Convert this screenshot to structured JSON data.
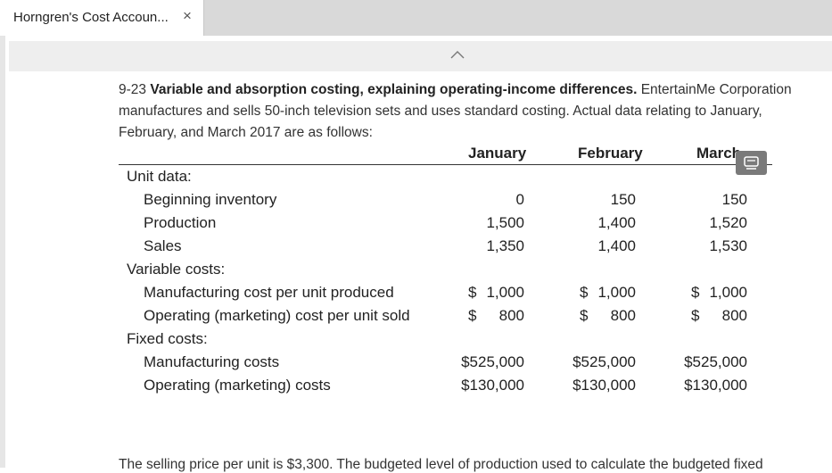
{
  "tab": {
    "title": "Horngren's Cost Accoun...",
    "close": "×"
  },
  "problem": {
    "number": "9-23",
    "title": "Variable and absorption costing, explaining operating-income differences.",
    "intro": " EntertainMe Corporation manufactures and sells 50-inch television sets and uses standard costing. Actual data relating to January, February, and March 2017 are as follows:"
  },
  "table": {
    "columns": [
      "January",
      "February",
      "March"
    ],
    "unit_data_label": "Unit data:",
    "beginning_inventory": {
      "label": "Beginning inventory",
      "values": [
        "0",
        "150",
        "150"
      ]
    },
    "production": {
      "label": "Production",
      "values": [
        "1,500",
        "1,400",
        "1,520"
      ]
    },
    "sales": {
      "label": "Sales",
      "values": [
        "1,350",
        "1,400",
        "1,530"
      ]
    },
    "variable_costs_label": "Variable costs:",
    "mfg_cost_per_unit": {
      "label": "Manufacturing cost per unit produced",
      "dollar": "$",
      "values": [
        "1,000",
        "1,000",
        "1,000"
      ]
    },
    "op_cost_per_unit": {
      "label": "Operating (marketing) cost per unit sold",
      "dollar": "$",
      "values": [
        "800",
        "800",
        "800"
      ]
    },
    "fixed_costs_label": "Fixed costs:",
    "mfg_costs": {
      "label": "Manufacturing costs",
      "values": [
        "$525,000",
        "$525,000",
        "$525,000"
      ]
    },
    "op_costs": {
      "label": "Operating (marketing) costs",
      "values": [
        "$130,000",
        "$130,000",
        "$130,000"
      ]
    }
  },
  "footer_text": "The selling price per unit is $3,300. The budgeted level of production used to calculate the budgeted fixed"
}
